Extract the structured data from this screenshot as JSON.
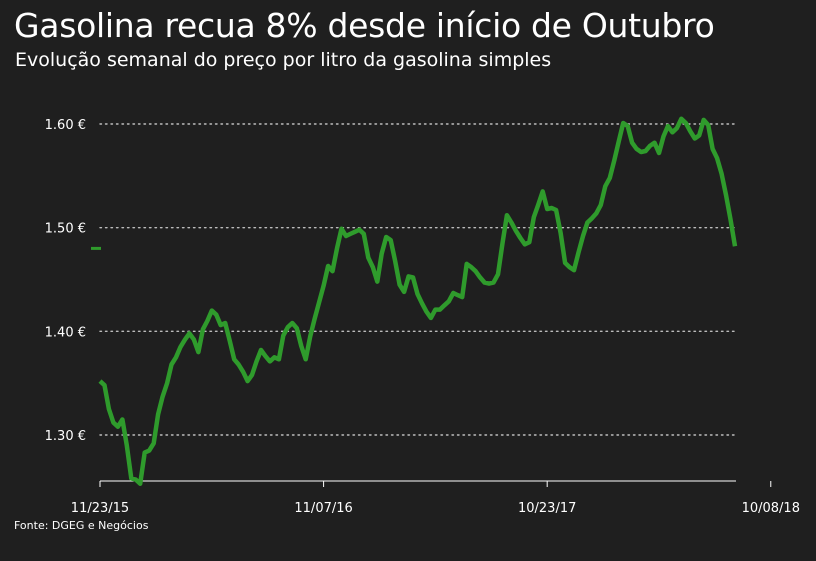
{
  "header": {
    "title": "Gasolina recua 8% desde início de Outubro",
    "subtitle": "Evolução semanal do preço por litro da gasolina simples"
  },
  "footer": {
    "source": "Fonte: DGEG e Negócios"
  },
  "colors": {
    "background": "#1f1f1f",
    "line": "#2f9b2c",
    "gridline": "#bdbdbd",
    "text": "#ffffff"
  },
  "chart_data": {
    "type": "line",
    "title": "Gasolina recua 8% desde início de Outubro",
    "subtitle": "Evolução semanal do preço por litro da gasolina simples",
    "xlabel": "",
    "ylabel": "",
    "ylim": [
      1.25,
      1.65
    ],
    "grid": true,
    "y_ticks": [
      {
        "value": 1.3,
        "label": "1.30 €"
      },
      {
        "value": 1.4,
        "label": "1.40 €"
      },
      {
        "value": 1.5,
        "label": "1.50 €"
      },
      {
        "value": 1.6,
        "label": "1.60 €"
      }
    ],
    "x_ticks": [
      {
        "index": 0,
        "label": "11/23/15"
      },
      {
        "index": 50,
        "label": "11/07/16"
      },
      {
        "index": 100,
        "label": "10/23/17"
      },
      {
        "index": 150,
        "label": "10/08/18"
      }
    ],
    "start_marker": 1.48,
    "series": [
      {
        "name": "",
        "values": [
          1.352,
          1.348,
          1.325,
          1.312,
          1.308,
          1.315,
          1.29,
          1.258,
          1.257,
          1.253,
          1.283,
          1.285,
          1.292,
          1.32,
          1.337,
          1.35,
          1.368,
          1.375,
          1.385,
          1.392,
          1.398,
          1.392,
          1.38,
          1.402,
          1.41,
          1.42,
          1.416,
          1.406,
          1.408,
          1.391,
          1.373,
          1.368,
          1.361,
          1.352,
          1.358,
          1.371,
          1.382,
          1.376,
          1.371,
          1.375,
          1.373,
          1.396,
          1.404,
          1.408,
          1.403,
          1.386,
          1.373,
          1.395,
          1.412,
          1.428,
          1.444,
          1.463,
          1.458,
          1.48,
          1.499,
          1.492,
          1.494,
          1.496,
          1.498,
          1.494,
          1.471,
          1.462,
          1.448,
          1.475,
          1.491,
          1.488,
          1.468,
          1.445,
          1.438,
          1.453,
          1.452,
          1.436,
          1.427,
          1.419,
          1.413,
          1.421,
          1.421,
          1.425,
          1.429,
          1.437,
          1.435,
          1.433,
          1.465,
          1.462,
          1.458,
          1.452,
          1.447,
          1.446,
          1.447,
          1.455,
          1.485,
          1.512,
          1.505,
          1.497,
          1.49,
          1.484,
          1.486,
          1.51,
          1.522,
          1.535,
          1.518,
          1.519,
          1.517,
          1.495,
          1.466,
          1.462,
          1.459,
          1.476,
          1.492,
          1.505,
          1.509,
          1.514,
          1.522,
          1.54,
          1.548,
          1.565,
          1.583,
          1.601,
          1.598,
          1.582,
          1.576,
          1.573,
          1.574,
          1.579,
          1.582,
          1.572,
          1.588,
          1.598,
          1.592,
          1.596,
          1.605,
          1.601,
          1.593,
          1.586,
          1.589,
          1.604,
          1.599,
          1.576,
          1.567,
          1.552,
          1.531,
          1.508,
          1.482
        ]
      }
    ]
  }
}
